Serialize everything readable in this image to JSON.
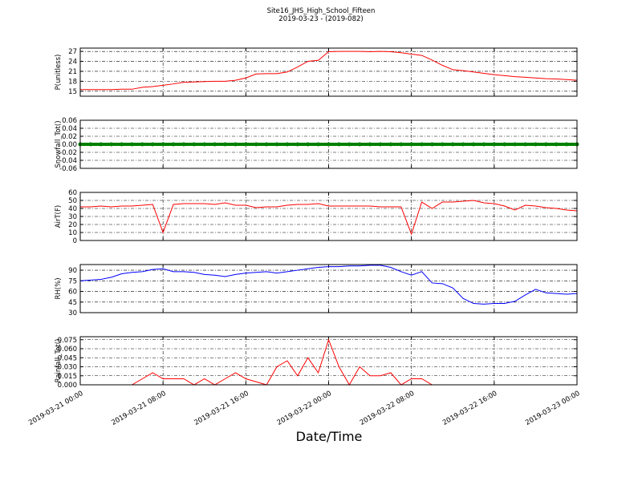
{
  "figure": {
    "title": "Site16_JHS_High_School_Fifteen",
    "subtitle": "2019-03-23 - (2019-082)",
    "xlabel": "Date/Time",
    "xlim": [
      "2019-03-21 00:00",
      "2019-03-23 00:00"
    ],
    "xticks": [
      "2019-03-21 00:00",
      "2019-03-21 08:00",
      "2019-03-21 16:00",
      "2019-03-22 00:00",
      "2019-03-22 08:00",
      "2019-03-22 16:00",
      "2019-03-23 00:00"
    ]
  },
  "chart_data": [
    {
      "type": "line",
      "ylabel": "P(unitless)",
      "ylim": [
        13.5,
        28
      ],
      "yticks": [
        15,
        18,
        21,
        24,
        27
      ],
      "grid": true,
      "x": [
        "2019-03-21 00:00",
        "2019-03-21 01:00",
        "2019-03-21 02:00",
        "2019-03-21 03:00",
        "2019-03-21 04:00",
        "2019-03-21 05:00",
        "2019-03-21 06:00",
        "2019-03-21 07:00",
        "2019-03-21 08:00",
        "2019-03-21 09:00",
        "2019-03-21 10:00",
        "2019-03-21 11:00",
        "2019-03-21 12:00",
        "2019-03-21 13:00",
        "2019-03-21 14:00",
        "2019-03-21 15:00",
        "2019-03-21 16:00",
        "2019-03-21 17:00",
        "2019-03-21 18:00",
        "2019-03-21 19:00",
        "2019-03-21 20:00",
        "2019-03-21 21:00",
        "2019-03-21 22:00",
        "2019-03-21 23:00",
        "2019-03-22 00:00",
        "2019-03-22 01:00",
        "2019-03-22 02:00",
        "2019-03-22 03:00",
        "2019-03-22 04:00",
        "2019-03-22 05:00",
        "2019-03-22 06:00",
        "2019-03-22 07:00",
        "2019-03-22 08:00",
        "2019-03-22 09:00",
        "2019-03-22 10:00",
        "2019-03-22 11:00",
        "2019-03-22 12:00",
        "2019-03-22 13:00",
        "2019-03-22 14:00",
        "2019-03-22 15:00",
        "2019-03-22 16:00",
        "2019-03-22 17:00",
        "2019-03-22 18:00",
        "2019-03-22 19:00",
        "2019-03-22 20:00",
        "2019-03-22 21:00",
        "2019-03-22 22:00",
        "2019-03-22 23:00",
        "2019-03-23 00:00"
      ],
      "series": [
        {
          "color": "#ff0000",
          "width": 1,
          "values": [
            15.5,
            15.5,
            15.5,
            15.5,
            15.6,
            15.6,
            16.2,
            16.4,
            16.8,
            17.2,
            17.7,
            17.8,
            17.9,
            18.0,
            18.0,
            18.3,
            19.0,
            20.2,
            20.3,
            20.3,
            20.8,
            22.3,
            24.0,
            24.3,
            26.9,
            27.0,
            27.0,
            27.0,
            26.9,
            27.0,
            26.9,
            26.6,
            26.2,
            25.8,
            24.4,
            22.8,
            21.5,
            21.2,
            20.8,
            20.4,
            20.0,
            19.7,
            19.4,
            19.2,
            19.0,
            18.8,
            18.7,
            18.5,
            18.3
          ]
        }
      ]
    },
    {
      "type": "line",
      "ylabel": "Snowfall_Tot()",
      "ylim": [
        -0.06,
        0.06
      ],
      "yticks": [
        -0.06,
        -0.04,
        -0.02,
        {
          "value": 0,
          "label": "0.00"
        },
        0.02,
        0.04,
        0.06
      ],
      "grid": true,
      "x": [
        "2019-03-21 00:00",
        "2019-03-21 01:00",
        "2019-03-21 02:00",
        "2019-03-21 03:00",
        "2019-03-21 04:00",
        "2019-03-21 05:00",
        "2019-03-21 06:00",
        "2019-03-21 07:00",
        "2019-03-21 08:00",
        "2019-03-21 09:00",
        "2019-03-21 10:00",
        "2019-03-21 11:00",
        "2019-03-21 12:00",
        "2019-03-21 13:00",
        "2019-03-21 14:00",
        "2019-03-21 15:00",
        "2019-03-21 16:00",
        "2019-03-21 17:00",
        "2019-03-21 18:00",
        "2019-03-21 19:00",
        "2019-03-21 20:00",
        "2019-03-21 21:00",
        "2019-03-21 22:00",
        "2019-03-21 23:00",
        "2019-03-22 00:00",
        "2019-03-22 01:00",
        "2019-03-22 02:00",
        "2019-03-22 03:00",
        "2019-03-22 04:00",
        "2019-03-22 05:00",
        "2019-03-22 06:00",
        "2019-03-22 07:00",
        "2019-03-22 08:00",
        "2019-03-22 09:00",
        "2019-03-22 10:00",
        "2019-03-22 11:00",
        "2019-03-22 12:00",
        "2019-03-22 13:00",
        "2019-03-22 14:00",
        "2019-03-22 15:00",
        "2019-03-22 16:00",
        "2019-03-22 17:00",
        "2019-03-22 18:00",
        "2019-03-22 19:00",
        "2019-03-22 20:00",
        "2019-03-22 21:00",
        "2019-03-22 22:00",
        "2019-03-22 23:00",
        "2019-03-23 00:00"
      ],
      "series": [
        {
          "color": "#008000",
          "width": 4,
          "markers": true,
          "values": [
            0,
            0,
            0,
            0,
            0,
            0,
            0,
            0,
            0,
            0,
            0,
            0,
            0,
            0,
            0,
            0,
            0,
            0,
            0,
            0,
            0,
            0,
            0,
            0,
            0,
            0,
            0,
            0,
            0,
            0,
            0,
            0,
            0,
            0,
            0,
            0,
            0,
            0,
            0,
            0,
            0,
            0,
            0,
            0,
            0,
            0,
            0,
            0,
            0
          ]
        }
      ]
    },
    {
      "type": "line",
      "ylabel": "AirT(F)",
      "ylim": [
        0,
        60
      ],
      "yticks": [
        0,
        10,
        20,
        30,
        40,
        50,
        60
      ],
      "grid": true,
      "x": [
        "2019-03-21 00:00",
        "2019-03-21 01:00",
        "2019-03-21 02:00",
        "2019-03-21 03:00",
        "2019-03-21 04:00",
        "2019-03-21 05:00",
        "2019-03-21 06:00",
        "2019-03-21 07:00",
        "2019-03-21 08:00",
        "2019-03-21 09:00",
        "2019-03-21 10:00",
        "2019-03-21 11:00",
        "2019-03-21 12:00",
        "2019-03-21 13:00",
        "2019-03-21 14:00",
        "2019-03-21 15:00",
        "2019-03-21 16:00",
        "2019-03-21 17:00",
        "2019-03-21 18:00",
        "2019-03-21 19:00",
        "2019-03-21 20:00",
        "2019-03-21 21:00",
        "2019-03-21 22:00",
        "2019-03-21 23:00",
        "2019-03-22 00:00",
        "2019-03-22 01:00",
        "2019-03-22 02:00",
        "2019-03-22 03:00",
        "2019-03-22 04:00",
        "2019-03-22 05:00",
        "2019-03-22 06:00",
        "2019-03-22 07:00",
        "2019-03-22 08:00",
        "2019-03-22 09:00",
        "2019-03-22 10:00",
        "2019-03-22 11:00",
        "2019-03-22 12:00",
        "2019-03-22 13:00",
        "2019-03-22 14:00",
        "2019-03-22 15:00",
        "2019-03-22 16:00",
        "2019-03-22 17:00",
        "2019-03-22 18:00",
        "2019-03-22 19:00",
        "2019-03-22 20:00",
        "2019-03-22 21:00",
        "2019-03-22 22:00",
        "2019-03-22 23:00",
        "2019-03-23 00:00"
      ],
      "series": [
        {
          "color": "#ff0000",
          "width": 1,
          "values": [
            42,
            42,
            43,
            42,
            43,
            43,
            44,
            45,
            10,
            45,
            46,
            46,
            46,
            45,
            47,
            44,
            44,
            41,
            42,
            42,
            44,
            45,
            45,
            46,
            43,
            43,
            43,
            43,
            43,
            42,
            42,
            42,
            8,
            48,
            40,
            48,
            48,
            49,
            50,
            47,
            46,
            43,
            38,
            44,
            43,
            41,
            40,
            38,
            37
          ]
        }
      ]
    },
    {
      "type": "line",
      "ylabel": "RH(%)",
      "ylim": [
        30,
        98
      ],
      "yticks": [
        30,
        45,
        60,
        75,
        90
      ],
      "grid": true,
      "x": [
        "2019-03-21 00:00",
        "2019-03-21 01:00",
        "2019-03-21 02:00",
        "2019-03-21 03:00",
        "2019-03-21 04:00",
        "2019-03-21 05:00",
        "2019-03-21 06:00",
        "2019-03-21 07:00",
        "2019-03-21 08:00",
        "2019-03-21 09:00",
        "2019-03-21 10:00",
        "2019-03-21 11:00",
        "2019-03-21 12:00",
        "2019-03-21 13:00",
        "2019-03-21 14:00",
        "2019-03-21 15:00",
        "2019-03-21 16:00",
        "2019-03-21 17:00",
        "2019-03-21 18:00",
        "2019-03-21 19:00",
        "2019-03-21 20:00",
        "2019-03-21 21:00",
        "2019-03-21 22:00",
        "2019-03-21 23:00",
        "2019-03-22 00:00",
        "2019-03-22 01:00",
        "2019-03-22 02:00",
        "2019-03-22 03:00",
        "2019-03-22 04:00",
        "2019-03-22 05:00",
        "2019-03-22 06:00",
        "2019-03-22 07:00",
        "2019-03-22 08:00",
        "2019-03-22 09:00",
        "2019-03-22 10:00",
        "2019-03-22 11:00",
        "2019-03-22 12:00",
        "2019-03-22 13:00",
        "2019-03-22 14:00",
        "2019-03-22 15:00",
        "2019-03-22 16:00",
        "2019-03-22 17:00",
        "2019-03-22 18:00",
        "2019-03-22 19:00",
        "2019-03-22 20:00",
        "2019-03-22 21:00",
        "2019-03-22 22:00",
        "2019-03-22 23:00",
        "2019-03-23 00:00"
      ],
      "series": [
        {
          "color": "#0000ff",
          "width": 1,
          "values": [
            75,
            76,
            77,
            80,
            85,
            87,
            88,
            91,
            92,
            88,
            88,
            87,
            84,
            83,
            81,
            84,
            86,
            87,
            88,
            86,
            88,
            90,
            92,
            94,
            95,
            95,
            96,
            96,
            97,
            97,
            94,
            88,
            83,
            88,
            72,
            71,
            65,
            50,
            43,
            42,
            43,
            43,
            46,
            55,
            63,
            58,
            57,
            56,
            57
          ]
        }
      ]
    },
    {
      "type": "line",
      "ylabel": "Rainfall_Tot()",
      "ylim": [
        0,
        0.08
      ],
      "yticks": [
        {
          "value": 0,
          "label": "0.000"
        },
        0.015,
        {
          "value": 0.03,
          "label": "0.030"
        },
        0.045,
        {
          "value": 0.06,
          "label": "0.060"
        },
        0.075
      ],
      "grid": true,
      "x": [
        "2019-03-21 00:00",
        "2019-03-21 01:00",
        "2019-03-21 02:00",
        "2019-03-21 03:00",
        "2019-03-21 04:00",
        "2019-03-21 05:00",
        "2019-03-21 06:00",
        "2019-03-21 07:00",
        "2019-03-21 08:00",
        "2019-03-21 09:00",
        "2019-03-21 10:00",
        "2019-03-21 11:00",
        "2019-03-21 12:00",
        "2019-03-21 13:00",
        "2019-03-21 14:00",
        "2019-03-21 15:00",
        "2019-03-21 16:00",
        "2019-03-21 17:00",
        "2019-03-21 18:00",
        "2019-03-21 19:00",
        "2019-03-21 20:00",
        "2019-03-21 21:00",
        "2019-03-21 22:00",
        "2019-03-21 23:00",
        "2019-03-22 00:00",
        "2019-03-22 01:00",
        "2019-03-22 02:00",
        "2019-03-22 03:00",
        "2019-03-22 04:00",
        "2019-03-22 05:00",
        "2019-03-22 06:00",
        "2019-03-22 07:00",
        "2019-03-22 08:00",
        "2019-03-22 09:00",
        "2019-03-22 10:00",
        "2019-03-22 11:00",
        "2019-03-22 12:00",
        "2019-03-22 13:00",
        "2019-03-22 14:00",
        "2019-03-22 15:00",
        "2019-03-22 16:00",
        "2019-03-22 17:00",
        "2019-03-22 18:00",
        "2019-03-22 19:00",
        "2019-03-22 20:00",
        "2019-03-22 21:00",
        "2019-03-22 22:00",
        "2019-03-22 23:00",
        "2019-03-23 00:00"
      ],
      "series": [
        {
          "color": "#ff0000",
          "width": 1,
          "values": [
            0,
            0,
            0,
            0,
            0,
            0,
            0.01,
            0.02,
            0.01,
            0.01,
            0.01,
            0,
            0.01,
            0,
            0.01,
            0.02,
            0.01,
            0.005,
            0,
            0.03,
            0.04,
            0.015,
            0.045,
            0.02,
            0.075,
            0.03,
            0,
            0.03,
            0.015,
            0.015,
            0.02,
            0,
            0.01,
            0.01,
            0,
            0,
            0,
            0,
            0,
            0,
            0,
            0,
            0,
            0,
            0,
            0,
            0,
            0,
            0
          ]
        }
      ]
    }
  ]
}
